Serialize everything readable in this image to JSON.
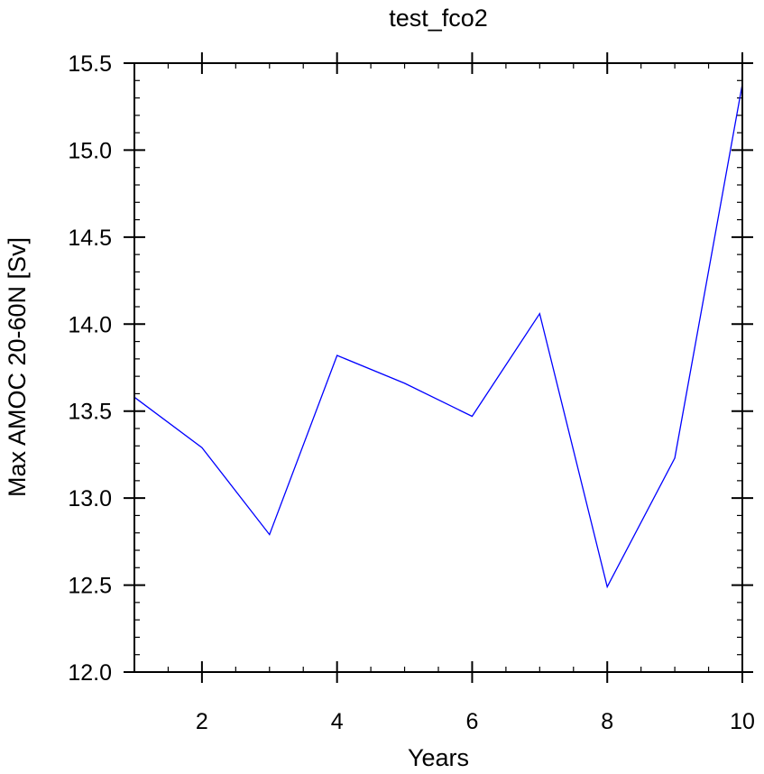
{
  "chart_data": {
    "type": "line",
    "title": "test_fco2",
    "xlabel": "Years",
    "ylabel": "Max AMOC 20-60N [Sv]",
    "xlim": [
      1,
      10
    ],
    "ylim": [
      12.0,
      15.5
    ],
    "x_ticks": [
      2,
      4,
      6,
      8,
      10
    ],
    "x_tick_labels": [
      "2",
      "4",
      "6",
      "8",
      "10"
    ],
    "y_ticks": [
      12.0,
      12.5,
      13.0,
      13.5,
      14.0,
      14.5,
      15.0,
      15.5
    ],
    "y_tick_labels": [
      "12.0",
      "12.5",
      "13.0",
      "13.5",
      "14.0",
      "14.5",
      "15.0",
      "15.5"
    ],
    "grid": false,
    "series": [
      {
        "color": "#0000ff",
        "x": [
          1,
          2,
          3,
          4,
          5,
          6,
          7,
          8,
          9,
          10
        ],
        "y": [
          13.58,
          13.29,
          12.79,
          13.82,
          13.66,
          13.47,
          14.06,
          12.49,
          13.23,
          15.38
        ]
      }
    ]
  }
}
